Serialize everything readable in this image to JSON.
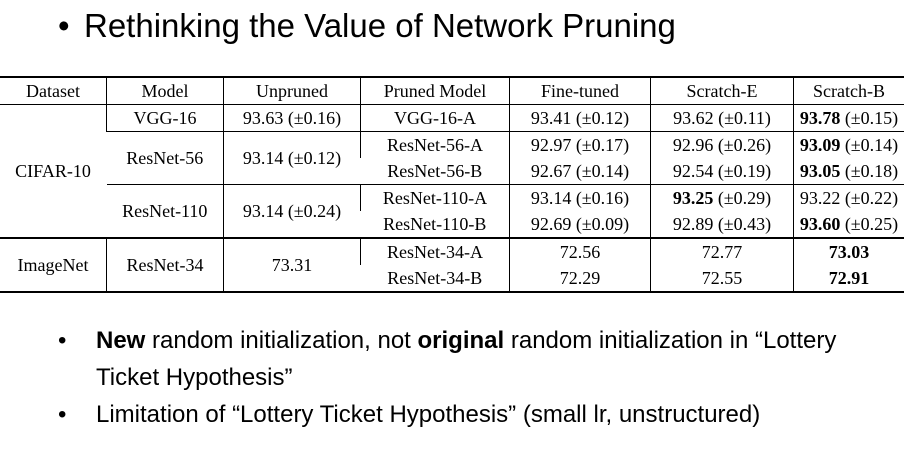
{
  "title": "Rethinking the Value of Network Pruning",
  "table": {
    "headers": [
      "Dataset",
      "Model",
      "Unpruned",
      "Pruned Model",
      "Fine-tuned",
      "Scratch-E",
      "Scratch-B"
    ],
    "cifar": {
      "dataset": "CIFAR-10",
      "vgg": {
        "model": "VGG-16",
        "unpruned": "93.63 (±0.16)",
        "pruned": "VGG-16-A",
        "fine": "93.41 (±0.12)",
        "scratch_e": "93.62 (±0.11)",
        "scratch_b_val": "93.78",
        "scratch_b_std": " (±0.15)"
      },
      "resnet56": {
        "model": "ResNet-56",
        "unpruned": "93.14 (±0.12)",
        "a": {
          "pruned": "ResNet-56-A",
          "fine": "92.97 (±0.17)",
          "scratch_e": "92.96 (±0.26)",
          "scratch_b_val": "93.09",
          "scratch_b_std": " (±0.14)"
        },
        "b": {
          "pruned": "ResNet-56-B",
          "fine": "92.67 (±0.14)",
          "scratch_e": "92.54 (±0.19)",
          "scratch_b_val": "93.05",
          "scratch_b_std": " (±0.18)"
        }
      },
      "resnet110": {
        "model": "ResNet-110",
        "unpruned": "93.14 (±0.24)",
        "a": {
          "pruned": "ResNet-110-A",
          "fine": "93.14 (±0.16)",
          "scratch_e_val": "93.25",
          "scratch_e_std": " (±0.29)",
          "scratch_b": "93.22 (±0.22)"
        },
        "b": {
          "pruned": "ResNet-110-B",
          "fine": "92.69 (±0.09)",
          "scratch_e": "92.89 (±0.43)",
          "scratch_b_val": "93.60",
          "scratch_b_std": " (±0.25)"
        }
      }
    },
    "imagenet": {
      "dataset": "ImageNet",
      "model": "ResNet-34",
      "unpruned": "73.31",
      "a": {
        "pruned": "ResNet-34-A",
        "fine": "72.56",
        "scratch_e": "72.77",
        "scratch_b": "73.03"
      },
      "b": {
        "pruned": "ResNet-34-B",
        "fine": "72.29",
        "scratch_e": "72.55",
        "scratch_b": "72.91"
      }
    }
  },
  "bullets": {
    "b1_bold1": "New",
    "b1_text1": " random initialization, not ",
    "b1_bold2": "original",
    "b1_text2": " random initialization in “Lottery Ticket Hypothesis”",
    "b2_text": "Limitation of “Lottery Ticket Hypothesis” (small lr, unstructured)"
  }
}
